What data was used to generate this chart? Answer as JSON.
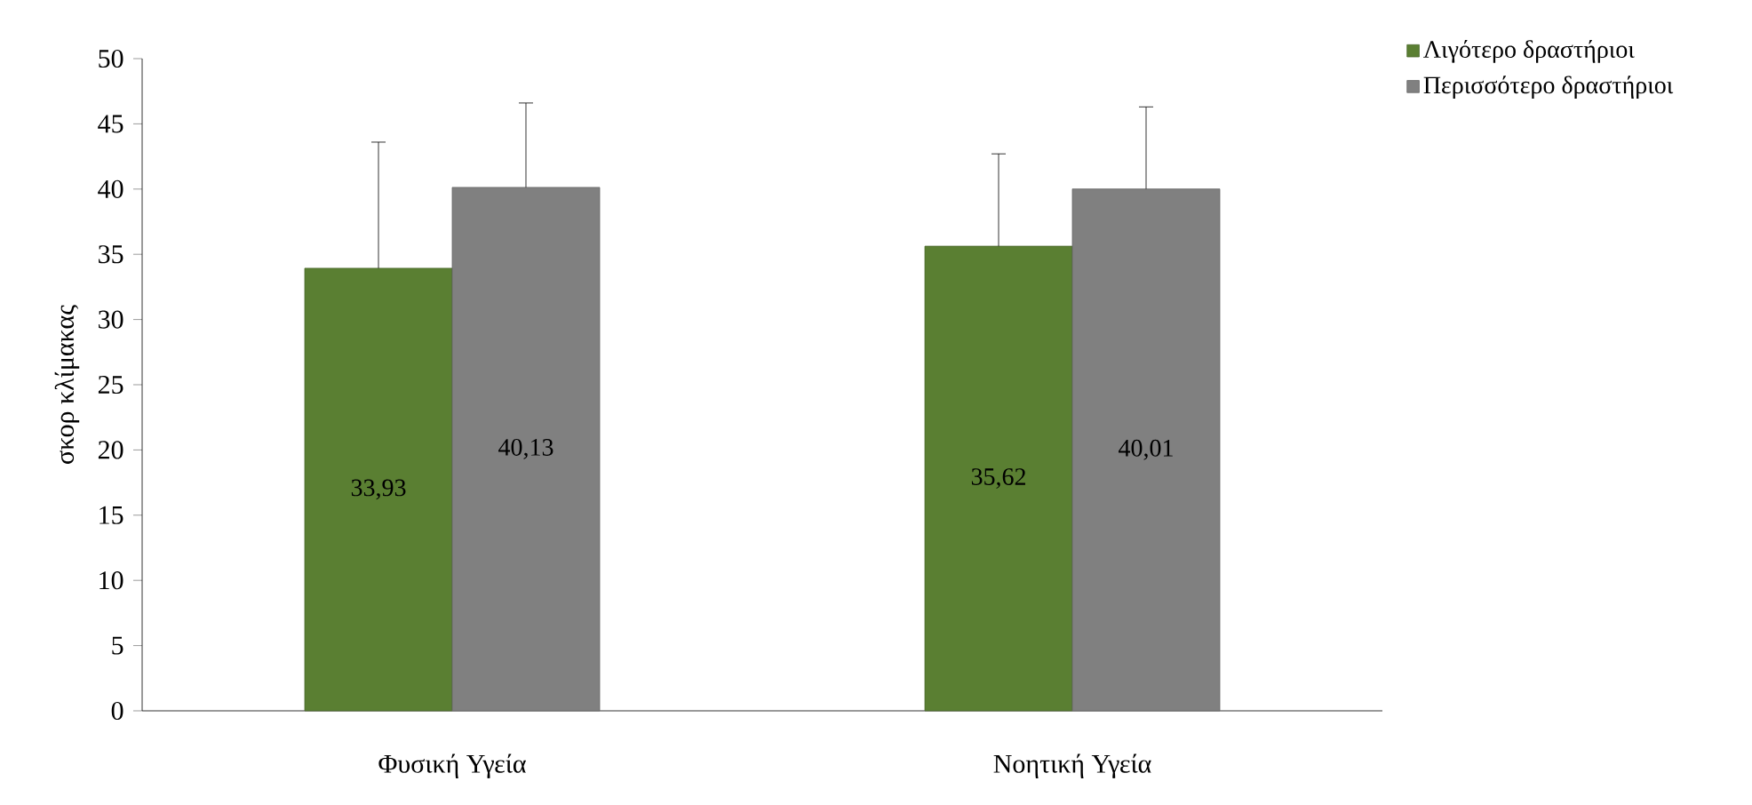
{
  "chart_data": {
    "type": "bar",
    "ylabel": "σκορ κλίμακας",
    "categories": [
      "Φυσική Υγεία",
      "Νοητική Υγεία"
    ],
    "series": [
      {
        "name": "Λιγότερο δραστήριοι",
        "color": "#5a7f32",
        "values": [
          33.93,
          35.62
        ],
        "value_labels": [
          "33,93",
          "35,62"
        ],
        "errors": [
          [
            33.93,
            43.6
          ],
          [
            35.62,
            42.7
          ]
        ]
      },
      {
        "name": "Περισσότερο δραστήριοι",
        "color": "#808080",
        "values": [
          40.13,
          40.01
        ],
        "value_labels": [
          "40,13",
          "40,01"
        ],
        "errors": [
          [
            40.13,
            46.6
          ],
          [
            40.01,
            46.3
          ]
        ]
      }
    ],
    "ylim": [
      0,
      50
    ],
    "yticks": [
      0,
      5,
      10,
      15,
      20,
      25,
      30,
      35,
      40,
      45,
      50
    ],
    "legend": "top right",
    "grid": false
  }
}
